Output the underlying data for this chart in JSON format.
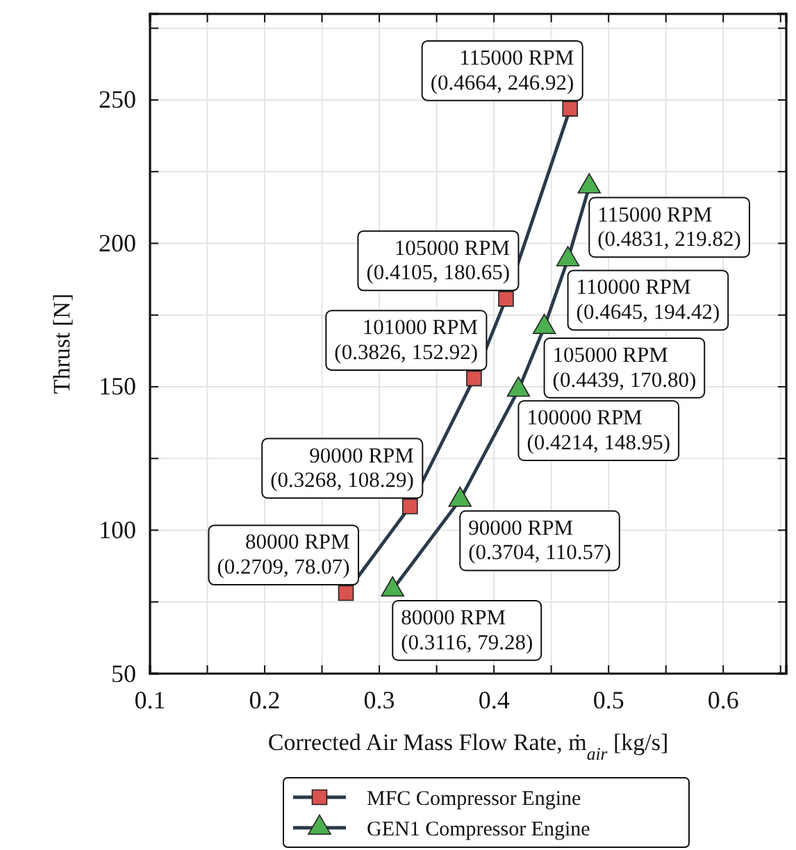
{
  "chart_data": {
    "type": "line",
    "xlabel": "Corrected Air Mass Flow Rate, ṁ$_{air}$ [kg/s]",
    "ylabel": "Thrust [N]",
    "xlim": [
      0.1,
      0.655
    ],
    "ylim": [
      50,
      280
    ],
    "xticks": [
      0.1,
      {
        "value": 0.15,
        "label": null
      },
      0.2,
      {
        "value": 0.25,
        "label": null
      },
      0.3,
      {
        "value": 0.35,
        "label": null
      },
      0.4,
      {
        "value": 0.45,
        "label": null
      },
      0.5,
      {
        "value": 0.55,
        "label": null
      },
      0.6,
      {
        "value": 0.65,
        "label": null
      }
    ],
    "yticks": [
      50,
      {
        "value": 75,
        "label": null
      },
      100,
      {
        "value": 125,
        "label": null
      },
      150,
      {
        "value": 175,
        "label": null
      },
      200,
      {
        "value": 225,
        "label": null
      },
      250,
      {
        "value": 275,
        "label": null
      }
    ],
    "grid": true,
    "legend": "bottom",
    "line_style": "solid",
    "series": [
      {
        "name": "MFC Compressor Engine",
        "color": "#d9534f",
        "marker": "square",
        "x": [
          0.2709,
          0.3268,
          0.3826,
          0.4105,
          0.4664
        ],
        "values": [
          78.07,
          108.29,
          152.92,
          180.65,
          246.92
        ]
      },
      {
        "name": "GEN1 Compressor Engine",
        "color": "#4caf50",
        "marker": "triangle",
        "x": [
          0.3116,
          0.3704,
          0.4214,
          0.4439,
          0.4645,
          0.4831
        ],
        "values": [
          79.28,
          110.57,
          148.95,
          170.8,
          194.42,
          219.82
        ]
      }
    ],
    "annotations": [
      {
        "text": "80000 RPM\n(0.2709, 78.07)",
        "x": 0.2709,
        "y": 78.07
      },
      {
        "text": "90000 RPM\n(0.3268, 108.29)",
        "x": 0.3268,
        "y": 108.29
      },
      {
        "text": "101000 RPM\n(0.3826, 152.92)",
        "x": 0.3826,
        "y": 152.92
      },
      {
        "text": "105000 RPM\n(0.4105, 180.65)",
        "x": 0.4105,
        "y": 180.65
      },
      {
        "text": "115000 RPM\n(0.4664, 246.92)",
        "x": 0.4664,
        "y": 246.92
      },
      {
        "text": "80000 RPM\n(0.3116, 79.28)",
        "x": 0.3116,
        "y": 79.28
      },
      {
        "text": "90000 RPM\n(0.3704, 110.57)",
        "x": 0.3704,
        "y": 110.57
      },
      {
        "text": "100000 RPM\n(0.4214, 148.95)",
        "x": 0.4214,
        "y": 148.95
      },
      {
        "text": "105000 RPM\n(0.4439, 170.80)",
        "x": 0.4439,
        "y": 170.8
      },
      {
        "text": "110000 RPM\n(0.4645, 194.42)",
        "x": 0.4645,
        "y": 194.42
      },
      {
        "text": "115000 RPM\n(0.4831, 219.82)",
        "x": 0.4831,
        "y": 219.82
      }
    ]
  }
}
